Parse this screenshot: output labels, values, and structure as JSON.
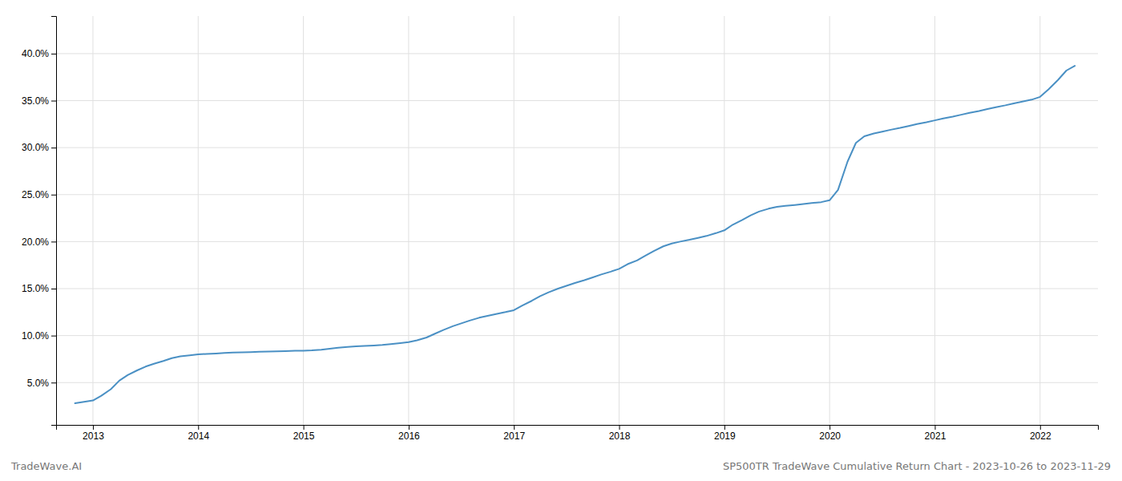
{
  "chart_data": {
    "type": "line",
    "title": "SP500TR TradeWave Cumulative Return Chart - 2023-10-26 to 2023-11-29",
    "annotations": [
      "TradeWave.AI"
    ],
    "color": "#4a90c4",
    "grid": true,
    "x": [
      2012.83,
      2013.0,
      2013.08,
      2013.17,
      2013.25,
      2013.33,
      2013.42,
      2013.5,
      2013.58,
      2013.67,
      2013.75,
      2013.83,
      2013.92,
      2014.0,
      2014.08,
      2014.17,
      2014.25,
      2014.33,
      2014.42,
      2014.5,
      2014.58,
      2014.67,
      2014.75,
      2014.83,
      2014.92,
      2015.0,
      2015.08,
      2015.17,
      2015.25,
      2015.33,
      2015.42,
      2015.5,
      2015.58,
      2015.67,
      2015.75,
      2015.83,
      2015.92,
      2016.0,
      2016.08,
      2016.17,
      2016.25,
      2016.33,
      2016.42,
      2016.5,
      2016.58,
      2016.67,
      2016.75,
      2016.83,
      2016.92,
      2017.0,
      2017.08,
      2017.17,
      2017.25,
      2017.33,
      2017.42,
      2017.5,
      2017.58,
      2017.67,
      2017.75,
      2017.83,
      2017.92,
      2018.0,
      2018.08,
      2018.17,
      2018.25,
      2018.33,
      2018.42,
      2018.5,
      2018.58,
      2018.67,
      2018.75,
      2018.83,
      2018.92,
      2019.0,
      2019.08,
      2019.17,
      2019.25,
      2019.33,
      2019.42,
      2019.5,
      2019.58,
      2019.67,
      2019.75,
      2019.83,
      2019.92,
      2020.0,
      2020.08,
      2020.17,
      2020.25,
      2020.33,
      2020.42,
      2020.5,
      2020.58,
      2020.67,
      2020.75,
      2020.83,
      2020.92,
      2021.0,
      2021.08,
      2021.17,
      2021.25,
      2021.33,
      2021.42,
      2021.5,
      2021.58,
      2021.67,
      2021.75,
      2021.83,
      2021.92,
      2022.0,
      2022.08,
      2022.17,
      2022.25,
      2022.33
    ],
    "values": [
      2.8,
      3.1,
      3.6,
      4.3,
      5.2,
      5.8,
      6.3,
      6.7,
      7.0,
      7.3,
      7.6,
      7.8,
      7.9,
      8.0,
      8.05,
      8.1,
      8.15,
      8.2,
      8.22,
      8.25,
      8.28,
      8.3,
      8.32,
      8.35,
      8.38,
      8.4,
      8.43,
      8.5,
      8.6,
      8.7,
      8.8,
      8.85,
      8.9,
      8.95,
      9.0,
      9.1,
      9.2,
      9.3,
      9.5,
      9.8,
      10.2,
      10.6,
      11.0,
      11.3,
      11.6,
      11.9,
      12.1,
      12.3,
      12.5,
      12.7,
      13.2,
      13.7,
      14.2,
      14.6,
      15.0,
      15.3,
      15.6,
      15.9,
      16.2,
      16.5,
      16.8,
      17.1,
      17.6,
      18.0,
      18.5,
      19.0,
      19.5,
      19.8,
      20.0,
      20.2,
      20.4,
      20.6,
      20.9,
      21.2,
      21.8,
      22.3,
      22.8,
      23.2,
      23.5,
      23.7,
      23.8,
      23.9,
      24.0,
      24.1,
      24.2,
      24.4,
      25.5,
      28.5,
      30.5,
      31.2,
      31.5,
      31.7,
      31.9,
      32.1,
      32.3,
      32.5,
      32.7,
      32.9,
      33.1,
      33.3,
      33.5,
      33.7,
      33.9,
      34.1,
      34.3,
      34.5,
      34.7,
      34.9,
      35.1,
      35.4,
      36.2,
      37.2,
      38.2,
      38.7
    ],
    "xlim": [
      2012.65,
      2022.55
    ],
    "xticks": [
      2013,
      2014,
      2015,
      2016,
      2017,
      2018,
      2019,
      2020,
      2021,
      2022
    ],
    "ylim": [
      0.5,
      44.0
    ],
    "yticks": [
      {
        "value": 5.0,
        "label": "5.0%"
      },
      {
        "value": 10.0,
        "label": "10.0%"
      },
      {
        "value": 15.0,
        "label": "15.0%"
      },
      {
        "value": 20.0,
        "label": "20.0%"
      },
      {
        "value": 25.0,
        "label": "25.0%"
      },
      {
        "value": 30.0,
        "label": "30.0%"
      },
      {
        "value": 35.0,
        "label": "35.0%"
      },
      {
        "value": 40.0,
        "label": "40.0%"
      }
    ]
  }
}
